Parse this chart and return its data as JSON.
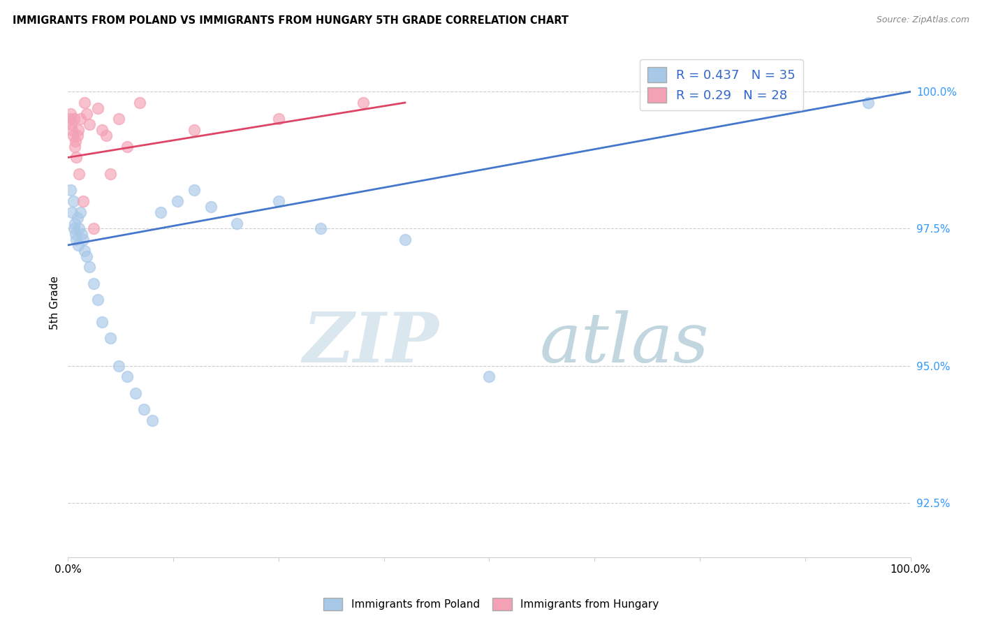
{
  "title": "IMMIGRANTS FROM POLAND VS IMMIGRANTS FROM HUNGARY 5TH GRADE CORRELATION CHART",
  "source": "Source: ZipAtlas.com",
  "ylabel": "5th Grade",
  "xlim": [
    0,
    100
  ],
  "ylim": [
    91.5,
    100.8
  ],
  "yticks": [
    92.5,
    95.0,
    97.5,
    100.0
  ],
  "ytick_labels": [
    "92.5%",
    "95.0%",
    "97.5%",
    "100.0%"
  ],
  "poland_color": "#a8c8e8",
  "hungary_color": "#f4a0b5",
  "poland_line_color": "#4477cc",
  "hungary_line_color": "#dd4466",
  "R_poland": 0.437,
  "N_poland": 35,
  "R_hungary": 0.29,
  "N_hungary": 28,
  "legend_text_color": "#3366cc",
  "poland_x": [
    0.3,
    0.5,
    0.6,
    0.7,
    0.8,
    0.9,
    1.0,
    1.1,
    1.2,
    1.3,
    1.5,
    1.6,
    1.8,
    2.0,
    2.2,
    2.5,
    3.0,
    3.5,
    4.0,
    5.0,
    6.0,
    7.0,
    8.0,
    9.0,
    10.0,
    11.0,
    13.0,
    15.0,
    17.0,
    20.0,
    25.0,
    30.0,
    40.0,
    50.0,
    95.0
  ],
  "poland_y": [
    98.2,
    97.8,
    98.0,
    97.5,
    97.6,
    97.4,
    97.3,
    97.7,
    97.2,
    97.5,
    97.8,
    97.4,
    97.3,
    97.1,
    97.0,
    96.8,
    96.5,
    96.2,
    95.8,
    95.5,
    95.0,
    94.8,
    94.5,
    94.2,
    94.0,
    97.8,
    98.0,
    98.2,
    97.9,
    97.6,
    98.0,
    97.5,
    97.3,
    94.8,
    99.8
  ],
  "hungary_x": [
    0.2,
    0.3,
    0.4,
    0.5,
    0.6,
    0.7,
    0.8,
    0.9,
    1.0,
    1.1,
    1.2,
    1.3,
    1.5,
    1.8,
    2.0,
    2.2,
    2.5,
    3.0,
    3.5,
    4.0,
    4.5,
    5.0,
    6.0,
    7.0,
    8.5,
    15.0,
    25.0,
    35.0
  ],
  "hungary_y": [
    99.5,
    99.6,
    99.4,
    99.3,
    99.2,
    99.5,
    99.0,
    99.1,
    98.8,
    99.2,
    99.3,
    98.5,
    99.5,
    98.0,
    99.8,
    99.6,
    99.4,
    97.5,
    99.7,
    99.3,
    99.2,
    98.5,
    99.5,
    99.0,
    99.8,
    99.3,
    99.5,
    99.8
  ],
  "poland_trend_x": [
    0,
    100
  ],
  "poland_trend_y": [
    97.2,
    100.0
  ],
  "hungary_trend_x": [
    0,
    40
  ],
  "hungary_trend_y": [
    98.8,
    99.8
  ]
}
